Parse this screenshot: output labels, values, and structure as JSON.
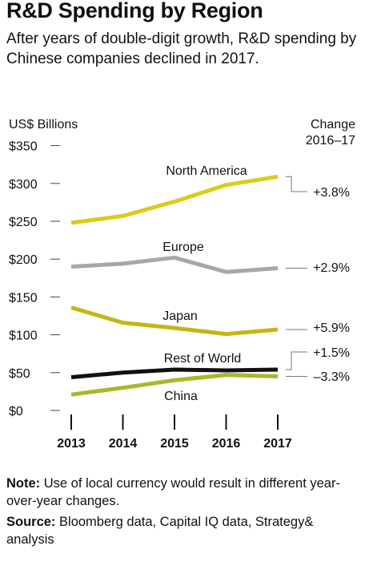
{
  "title": "R&D Spending by Region",
  "subtitle": "After years of double-digit growth, R&D spending by Chinese companies declined in 2017.",
  "note": {
    "label": "Note:",
    "text": " Use of local currency would result in different year-over-year changes."
  },
  "source": {
    "label": "Source:",
    "text": " Bloomberg data, Capital IQ data, Strategy& analysis"
  },
  "chart_data": {
    "type": "line",
    "ylabel": "US$ Billions",
    "change_header": [
      "Change",
      "2016–17"
    ],
    "x": [
      "2013",
      "2014",
      "2015",
      "2016",
      "2017"
    ],
    "ylim": [
      0,
      350
    ],
    "yticks": [
      0,
      50,
      100,
      150,
      200,
      250,
      300,
      350
    ],
    "ytick_labels": [
      "$0",
      "$50",
      "$100",
      "$150",
      "$200",
      "$250",
      "$300",
      "$350"
    ],
    "grid": false,
    "series": [
      {
        "name": "North America",
        "color": "#dccb1c",
        "values": [
          248,
          257,
          276,
          298,
          309
        ],
        "change": "+3.8%"
      },
      {
        "name": "Europe",
        "color": "#a7a7a7",
        "values": [
          190,
          194,
          202,
          183,
          188
        ],
        "change": "+2.9%"
      },
      {
        "name": "Japan",
        "color": "#c7b415",
        "values": [
          136,
          116,
          109,
          101,
          107
        ],
        "change": "+5.9%"
      },
      {
        "name": "Rest of World",
        "color": "#111111",
        "values": [
          44,
          50,
          54,
          53,
          54
        ],
        "change": "+1.5%"
      },
      {
        "name": "China",
        "color": "#aab829",
        "values": [
          21,
          30,
          40,
          47,
          45
        ],
        "change": "–3.3%"
      }
    ]
  }
}
